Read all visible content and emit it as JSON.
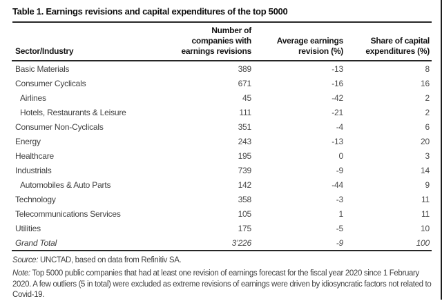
{
  "page": {
    "title": "Table 1. Earnings revisions and capital expenditures of the top 5000"
  },
  "table": {
    "columns": {
      "sector": "Sector/Industry",
      "companies": "Number of\ncompanies with\nearnings revisions",
      "revision": "Average earnings\nrevision (%)",
      "capex": "Share of capital\nexpenditures (%)"
    },
    "rows": [
      {
        "label": "Basic Materials",
        "values": [
          "389",
          "-13",
          "8"
        ]
      },
      {
        "label": "Consumer Cyclicals",
        "values": [
          "671",
          "-16",
          "16"
        ]
      },
      {
        "label": "Airlines",
        "indent": true,
        "values": [
          "45",
          "-42",
          "2"
        ]
      },
      {
        "label": "Hotels, Restaurants & Leisure",
        "indent": true,
        "values": [
          "111",
          "-21",
          "2"
        ]
      },
      {
        "label": "Consumer Non-Cyclicals",
        "values": [
          "351",
          "-4",
          "6"
        ]
      },
      {
        "label": "Energy",
        "values": [
          "243",
          "-13",
          "20"
        ]
      },
      {
        "label": "Healthcare",
        "values": [
          "195",
          "0",
          "3"
        ]
      },
      {
        "label": "Industrials",
        "values": [
          "739",
          "-9",
          "14"
        ]
      },
      {
        "label": "Automobiles & Auto Parts",
        "indent": true,
        "values": [
          "142",
          "-44",
          "9"
        ]
      },
      {
        "label": "Technology",
        "values": [
          "358",
          "-3",
          "11"
        ]
      },
      {
        "label": "Telecommunications Services",
        "values": [
          "105",
          "1",
          "11"
        ]
      },
      {
        "label": "Utilities",
        "values": [
          "175",
          "-5",
          "10"
        ]
      },
      {
        "label": "Grand Total",
        "total": true,
        "values": [
          "3’226",
          "-9",
          "100"
        ]
      }
    ]
  },
  "footer": {
    "source_label": "Source:",
    "source_text": " UNCTAD, based on data from Refinitiv SA.",
    "note_label": "Note:",
    "note_text": " Top 5000 public companies that had at least one revision of earnings forecast for the fiscal year 2020 since 1 February 2020. A few outliers (5 in total) were excluded as extreme revisions of earnings were driven by idiosyncratic factors not related to Covid-19."
  },
  "colors": {
    "rule": "#262626",
    "text": "#3f3f3f",
    "heading": "#0e0e0e"
  }
}
